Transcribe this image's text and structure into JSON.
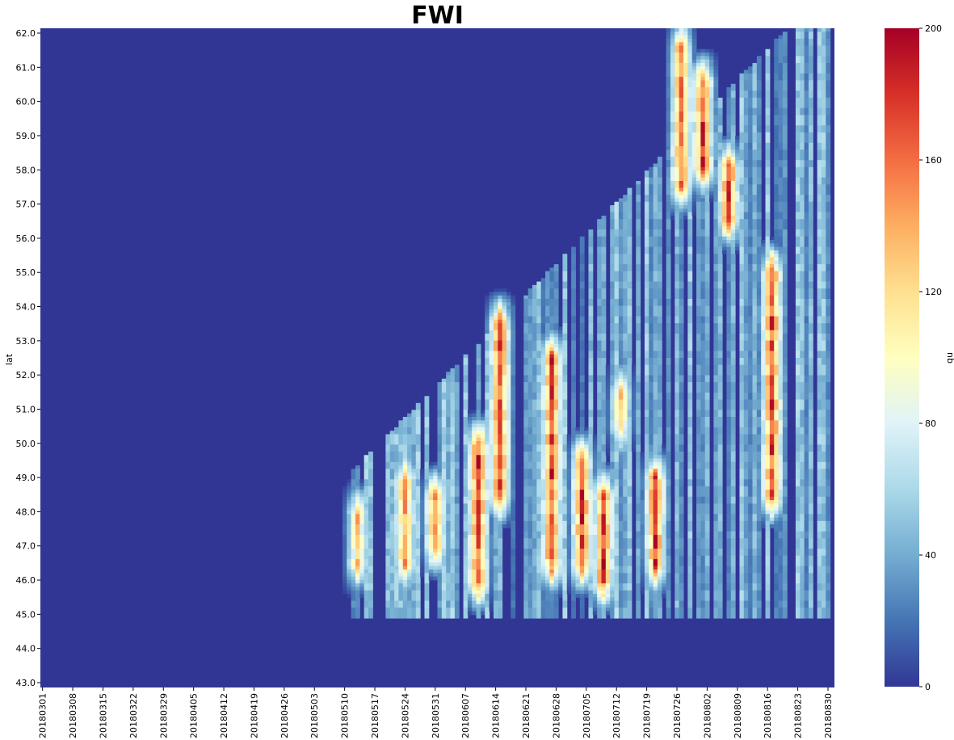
{
  "chart_data": {
    "type": "heatmap",
    "title": "FWI",
    "xlabel": "",
    "ylabel": "lat",
    "x_tick_labels": [
      "20180301",
      "20180308",
      "20180315",
      "20180322",
      "20180329",
      "20180405",
      "20180412",
      "20180419",
      "20180426",
      "20180503",
      "20180510",
      "20180517",
      "20180524",
      "20180531",
      "20180607",
      "20180614",
      "20180621",
      "20180628",
      "20180705",
      "20180712",
      "20180719",
      "20180726",
      "20180802",
      "20180809",
      "20180816",
      "20180823",
      "20180830"
    ],
    "y_tick_labels": [
      "62.0",
      "61.0",
      "60.0",
      "59.0",
      "58.0",
      "57.0",
      "56.0",
      "55.0",
      "54.0",
      "53.0",
      "52.0",
      "51.0",
      "50.0",
      "49.0",
      "48.0",
      "47.0",
      "46.0",
      "45.0",
      "44.0",
      "43.0"
    ],
    "y_range": [
      43.0,
      62.0
    ],
    "x_range": [
      "20180301",
      "20180831"
    ],
    "colorbar": {
      "label": "nb",
      "range": [
        0,
        200
      ],
      "ticks": [
        "0",
        "40",
        "80",
        "120",
        "160",
        "200"
      ],
      "colormap": "RdYlBu_r",
      "colors": [
        "#313695",
        "#4575b4",
        "#74add1",
        "#abd9e9",
        "#e0f3f8",
        "#ffffbf",
        "#fee090",
        "#fdae61",
        "#f46d43",
        "#d73027",
        "#a50026"
      ]
    },
    "hotspots": [
      {
        "date": "20180513",
        "lat_range": [
          46.0,
          48.5
        ],
        "value": 150
      },
      {
        "date": "20180524",
        "lat_range": [
          46.0,
          49.5
        ],
        "value": 170
      },
      {
        "date": "20180531",
        "lat_range": [
          46.5,
          49.0
        ],
        "value": 190
      },
      {
        "date": "20180610",
        "lat_range": [
          45.5,
          50.5
        ],
        "value": 200
      },
      {
        "date": "20180615",
        "lat_range": [
          48.0,
          54.0
        ],
        "value": 200
      },
      {
        "date": "20180627",
        "lat_range": [
          46.0,
          53.0
        ],
        "value": 200
      },
      {
        "date": "20180704",
        "lat_range": [
          46.0,
          50.0
        ],
        "value": 200
      },
      {
        "date": "20180709",
        "lat_range": [
          45.5,
          49.0
        ],
        "value": 200
      },
      {
        "date": "20180713",
        "lat_range": [
          50.0,
          52.0
        ],
        "value": 150
      },
      {
        "date": "20180721",
        "lat_range": [
          46.0,
          49.5
        ],
        "value": 200
      },
      {
        "date": "20180727",
        "lat_range": [
          57.0,
          62.0
        ],
        "value": 190
      },
      {
        "date": "20180801",
        "lat_range": [
          57.5,
          61.0
        ],
        "value": 200
      },
      {
        "date": "20180807",
        "lat_range": [
          56.0,
          58.5
        ],
        "value": 200
      },
      {
        "date": "20180817",
        "lat_range": [
          48.0,
          55.5
        ],
        "value": 200
      }
    ]
  }
}
